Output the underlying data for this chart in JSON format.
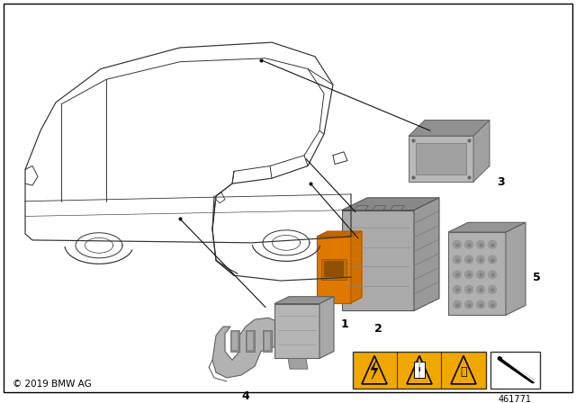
{
  "background_color": "#ffffff",
  "border_color": "#000000",
  "copyright_text": "© 2019 BMW AG",
  "part_number": "461771",
  "car": {
    "color": "#000000",
    "lw": 0.9
  },
  "parts": {
    "colors": {
      "main_grey": "#a0a0a0",
      "light_grey": "#c8c8c8",
      "dark_grey": "#707070",
      "orange": "#e07800",
      "orange_dark": "#b05a00"
    }
  },
  "warning_yellow": "#f0a800",
  "label_fontsize": 9
}
